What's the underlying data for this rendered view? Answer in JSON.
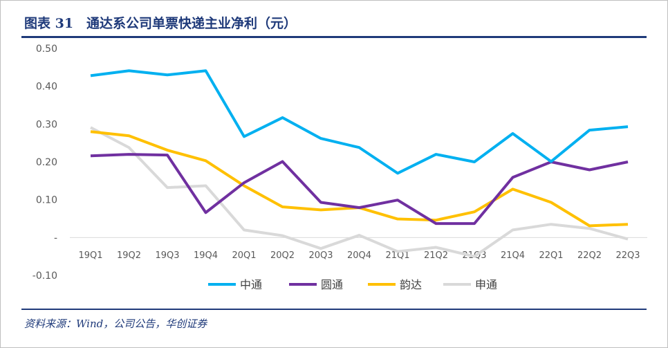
{
  "header": {
    "title": "图表 31　通达系公司单票快递主业净利（元）"
  },
  "footer": {
    "source": "资料来源：Wind，公司公告，华创证券"
  },
  "chart_data": {
    "type": "line",
    "title": "",
    "xlabel": "",
    "ylabel": "",
    "categories": [
      "19Q1",
      "19Q2",
      "19Q3",
      "19Q4",
      "20Q1",
      "20Q2",
      "20Q3",
      "20Q4",
      "21Q1",
      "21Q2",
      "21Q3",
      "21Q4",
      "22Q1",
      "22Q2",
      "22Q3"
    ],
    "ylim": [
      -0.1,
      0.5
    ],
    "yticks": [
      0.5,
      0.4,
      0.3,
      0.2,
      0.1,
      0,
      -0.1
    ],
    "ytick_labels": [
      "0.50",
      "0.40",
      "0.30",
      "0.20",
      "0.10",
      "-",
      "-0.10"
    ],
    "grid": false,
    "legend": "bottom",
    "series": [
      {
        "name": "中通",
        "color": "#00b0f0",
        "values": [
          0.428,
          0.441,
          0.43,
          0.441,
          0.267,
          0.317,
          0.262,
          0.238,
          0.17,
          0.22,
          0.2,
          0.275,
          0.201,
          0.284,
          0.293
        ]
      },
      {
        "name": "圆通",
        "color": "#7030a0",
        "values": [
          0.216,
          0.22,
          0.218,
          0.066,
          0.145,
          0.201,
          0.093,
          0.079,
          0.099,
          0.037,
          0.037,
          0.159,
          0.2,
          0.179,
          0.2
        ]
      },
      {
        "name": "韵达",
        "color": "#ffc000",
        "values": [
          0.28,
          0.269,
          0.231,
          0.203,
          0.137,
          0.081,
          0.073,
          0.079,
          0.049,
          0.046,
          0.068,
          0.128,
          0.093,
          0.031,
          0.035
        ]
      },
      {
        "name": "申通",
        "color": "#d9d9d9",
        "values": [
          0.291,
          0.238,
          0.132,
          0.137,
          0.02,
          0.005,
          -0.029,
          0.006,
          -0.037,
          -0.026,
          -0.05,
          0.02,
          0.035,
          0.024,
          -0.004
        ]
      }
    ]
  }
}
